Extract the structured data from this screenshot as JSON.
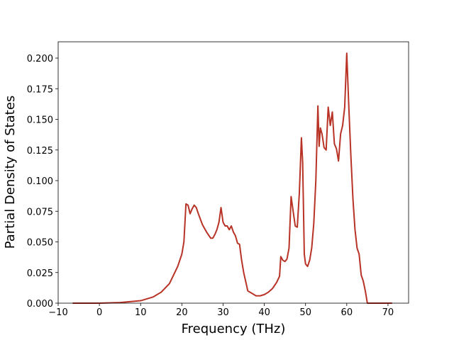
{
  "chart_data": {
    "type": "line",
    "x_label": "Frequency (THz)",
    "y_label": "Partial Density of States",
    "xlim": [
      -10,
      75
    ],
    "ylim": [
      0,
      0.2133
    ],
    "xticks": [
      {
        "value": -10,
        "label": "−10"
      },
      0,
      10,
      20,
      30,
      40,
      50,
      60,
      70
    ],
    "yticks": [
      {
        "value": 0,
        "label": "0.000"
      },
      {
        "value": 0.025,
        "label": "0.025"
      },
      {
        "value": 0.05,
        "label": "0.050"
      },
      {
        "value": 0.075,
        "label": "0.075"
      },
      {
        "value": 0.1,
        "label": "0.100"
      },
      {
        "value": 0.125,
        "label": "0.125"
      },
      {
        "value": 0.15,
        "label": "0.150"
      },
      {
        "value": 0.175,
        "label": "0.175"
      },
      {
        "value": 0.2,
        "label": "0.200"
      }
    ],
    "color": "#b83225",
    "x": [
      -6.5,
      0,
      5,
      10,
      13,
      15,
      17,
      18,
      19,
      20,
      20.5,
      21,
      21.5,
      22,
      22.5,
      23,
      23.5,
      24,
      25,
      26,
      27,
      27.5,
      28,
      28.5,
      29,
      29.5,
      30,
      30.5,
      31,
      31.5,
      32,
      32.5,
      33,
      33.5,
      34,
      34.5,
      35,
      36,
      37,
      38,
      39,
      40,
      41,
      42,
      43,
      43.7,
      44,
      44.5,
      45,
      45.5,
      46,
      46.5,
      47,
      47.5,
      48,
      48.5,
      49,
      49.3,
      49.7,
      50,
      50.5,
      51,
      51.5,
      52,
      52.5,
      53,
      53.3,
      53.6,
      54,
      54.5,
      55,
      55.5,
      56,
      56.5,
      57,
      57.5,
      58,
      58.5,
      59,
      59.5,
      60,
      60.5,
      61,
      61.5,
      62,
      62.5,
      63,
      63.5,
      64,
      64.5,
      65,
      71
    ],
    "values": [
      0,
      0,
      0.0005,
      0.002,
      0.005,
      0.009,
      0.016,
      0.023,
      0.03,
      0.04,
      0.05,
      0.081,
      0.08,
      0.073,
      0.077,
      0.08,
      0.078,
      0.073,
      0.064,
      0.058,
      0.053,
      0.053,
      0.056,
      0.06,
      0.066,
      0.078,
      0.066,
      0.063,
      0.063,
      0.06,
      0.063,
      0.058,
      0.055,
      0.049,
      0.048,
      0.035,
      0.025,
      0.01,
      0.008,
      0.006,
      0.006,
      0.007,
      0.009,
      0.012,
      0.017,
      0.022,
      0.038,
      0.035,
      0.034,
      0.036,
      0.045,
      0.087,
      0.075,
      0.063,
      0.062,
      0.09,
      0.135,
      0.115,
      0.04,
      0.032,
      0.03,
      0.035,
      0.045,
      0.065,
      0.1,
      0.161,
      0.128,
      0.143,
      0.138,
      0.127,
      0.125,
      0.16,
      0.145,
      0.156,
      0.13,
      0.126,
      0.116,
      0.138,
      0.145,
      0.16,
      0.204,
      0.16,
      0.12,
      0.085,
      0.06,
      0.045,
      0.04,
      0.023,
      0.018,
      0.01,
      0,
      0
    ]
  }
}
